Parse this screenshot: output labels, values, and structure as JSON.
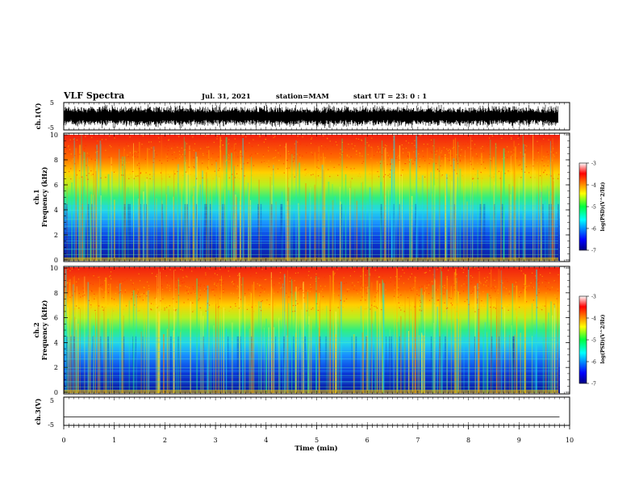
{
  "header": {
    "title": "VLF Spectra",
    "date": "Jul. 31, 2021",
    "station": "station=MAM",
    "start": "start UT = 23: 0 : 1"
  },
  "chart_data": [
    {
      "type": "line",
      "id": "ch1_waveform",
      "ylabel": "ch.1(V)",
      "yticks": [
        "5",
        "-5"
      ],
      "ylim": [
        -5,
        5
      ],
      "xlim": [
        0,
        10
      ],
      "note": "dense broadband noise waveform"
    },
    {
      "type": "heatmap",
      "id": "ch1_spectrogram",
      "ylabel_line1": "ch.1",
      "ylabel_line2": "Frequency (kHz)",
      "yticks": [
        "0",
        "2",
        "4",
        "6",
        "8",
        "10"
      ],
      "ylim": [
        0,
        10
      ],
      "xlim": [
        0,
        9.8
      ],
      "colorbar": {
        "label": "log(PSD)(V^2/Hz)",
        "ticks": [
          "-3",
          "-4",
          "-5",
          "-6",
          "-7"
        ],
        "range": [
          -7,
          -3
        ]
      }
    },
    {
      "type": "heatmap",
      "id": "ch2_spectrogram",
      "ylabel_line1": "ch.2",
      "ylabel_line2": "Frequency (kHz)",
      "yticks": [
        "0",
        "2",
        "4",
        "6",
        "8",
        "10"
      ],
      "ylim": [
        0,
        10
      ],
      "xlim": [
        0,
        9.8
      ],
      "colorbar": {
        "label": "log(PSD)(V^2/Hz)",
        "ticks": [
          "-3",
          "-4",
          "-5",
          "-6",
          "-7"
        ],
        "range": [
          -7,
          -3
        ]
      }
    },
    {
      "type": "line",
      "id": "ch3_waveform",
      "ylabel": "ch.3(V)",
      "yticks": [
        "5",
        "-5"
      ],
      "ylim": [
        -5,
        5
      ],
      "xlim": [
        0,
        10
      ],
      "x": [
        0,
        9.8
      ],
      "y": [
        -2,
        -2
      ]
    }
  ],
  "xaxis": {
    "label": "Time (min)",
    "ticks": [
      "0",
      "1",
      "2",
      "3",
      "4",
      "5",
      "6",
      "7",
      "8",
      "9",
      "10"
    ],
    "range": [
      0,
      10
    ]
  }
}
